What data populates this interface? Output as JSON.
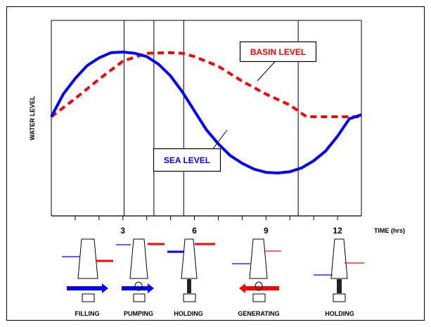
{
  "chart_data": {
    "type": "line",
    "xlabel": "TIME (hrs)",
    "ylabel": "WATER LEVEL",
    "xlim": [
      0,
      13
    ],
    "x_ticks": [
      3,
      6,
      9,
      12
    ],
    "x_tick_labels": [
      "3",
      "6",
      "9",
      "12"
    ],
    "grid": false,
    "phase_boundaries_hrs": [
      3.05,
      4.3,
      5.55,
      10.35
    ],
    "series": [
      {
        "name": "SEA LEVEL",
        "color": "#0000ff",
        "style": "solid",
        "points": [
          [
            0,
            0
          ],
          [
            0.5,
            0.35
          ],
          [
            1,
            0.59
          ],
          [
            1.5,
            0.79
          ],
          [
            2,
            0.91
          ],
          [
            2.5,
            0.99
          ],
          [
            3,
            1.0
          ],
          [
            3.5,
            0.98
          ],
          [
            4,
            0.93
          ],
          [
            4.5,
            0.81
          ],
          [
            5,
            0.63
          ],
          [
            5.5,
            0.38
          ],
          [
            6,
            0.09
          ],
          [
            6.5,
            -0.2
          ],
          [
            7,
            -0.42
          ],
          [
            7.5,
            -0.6
          ],
          [
            8,
            -0.72
          ],
          [
            8.5,
            -0.81
          ],
          [
            9,
            -0.86
          ],
          [
            9.5,
            -0.87
          ],
          [
            10,
            -0.85
          ],
          [
            10.5,
            -0.79
          ],
          [
            11,
            -0.68
          ],
          [
            11.5,
            -0.53
          ],
          [
            12,
            -0.3
          ],
          [
            12.5,
            -0.03
          ],
          [
            13,
            0.03
          ]
        ]
      },
      {
        "name": "BASIN LEVEL",
        "color": "#ff0000",
        "style": "dashed",
        "points": [
          [
            0,
            0
          ],
          [
            1,
            0.28
          ],
          [
            2,
            0.58
          ],
          [
            3,
            0.86
          ],
          [
            4,
            0.98
          ],
          [
            5,
            0.99
          ],
          [
            5.5,
            0.98
          ],
          [
            6,
            0.93
          ],
          [
            7,
            0.78
          ],
          [
            8,
            0.55
          ],
          [
            9,
            0.35
          ],
          [
            10,
            0.18
          ],
          [
            10.7,
            0.0
          ],
          [
            12,
            0.0
          ],
          [
            13,
            0.0
          ]
        ]
      }
    ]
  },
  "labels": {
    "basin_level": "BASIN LEVEL",
    "sea_level": "SEA LEVEL"
  },
  "stages": [
    {
      "label": "FILLING"
    },
    {
      "label": "PUMPING"
    },
    {
      "label": "HOLDING"
    },
    {
      "label": "GENERATING"
    },
    {
      "label": "HOLDING"
    }
  ],
  "colors": {
    "sea": "#0000ff",
    "basin": "#ff0000",
    "ink": "#000000"
  }
}
